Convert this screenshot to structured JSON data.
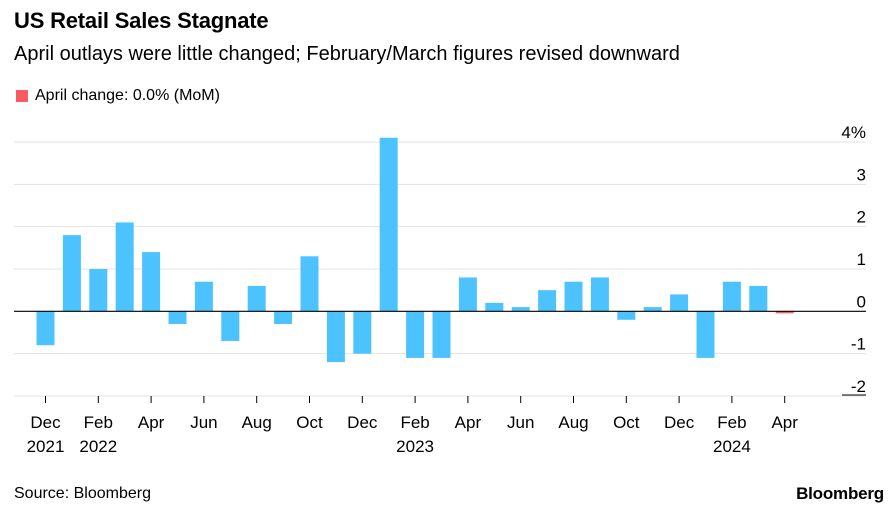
{
  "header": {
    "title": "US Retail Sales Stagnate",
    "subtitle": "April outlays were little changed; February/March figures revised downward"
  },
  "legend": {
    "label": "April change: 0.0% (MoM)",
    "color": "#ff5a5f"
  },
  "footer": {
    "source": "Source: Bloomberg",
    "brand": "Bloomberg"
  },
  "colors": {
    "bar": "#4cc3ff",
    "highlight": "#ff5a5f",
    "grid": "#e3e3e3",
    "zero": "#000000"
  },
  "chart_data": {
    "type": "bar",
    "title": "US Retail Sales Stagnate",
    "unit": "%",
    "categories": [
      "Dec 2021",
      "Jan 2022",
      "Feb 2022",
      "Mar 2022",
      "Apr 2022",
      "May 2022",
      "Jun 2022",
      "Jul 2022",
      "Aug 2022",
      "Sep 2022",
      "Oct 2022",
      "Nov 2022",
      "Dec 2022",
      "Jan 2023",
      "Feb 2023",
      "Mar 2023",
      "Apr 2023",
      "May 2023",
      "Jun 2023",
      "Jul 2023",
      "Aug 2023",
      "Sep 2023",
      "Oct 2023",
      "Nov 2023",
      "Dec 2023",
      "Jan 2024",
      "Feb 2024",
      "Mar 2024",
      "Apr 2024"
    ],
    "values": [
      -0.8,
      1.8,
      1.0,
      2.1,
      1.4,
      -0.3,
      0.7,
      -0.7,
      0.6,
      -0.3,
      1.3,
      -1.2,
      -1.0,
      4.1,
      -1.1,
      -1.1,
      0.8,
      0.2,
      0.1,
      0.5,
      0.7,
      0.8,
      -0.2,
      0.1,
      0.4,
      -1.1,
      0.7,
      0.6,
      0.0
    ],
    "highlight_index": 28,
    "ylim": [
      -2,
      4
    ],
    "y_ticks": [
      -2,
      -1,
      0,
      1,
      2,
      3,
      4
    ],
    "y_tick_labels": [
      "-2",
      "-1",
      "0",
      "1",
      "2",
      "3",
      "4%"
    ],
    "x_tick_labels": [
      {
        "index": 0,
        "month": "Dec",
        "year": "2021"
      },
      {
        "index": 2,
        "month": "Feb",
        "year": "2022"
      },
      {
        "index": 4,
        "month": "Apr",
        "year": ""
      },
      {
        "index": 6,
        "month": "Jun",
        "year": ""
      },
      {
        "index": 8,
        "month": "Aug",
        "year": ""
      },
      {
        "index": 10,
        "month": "Oct",
        "year": ""
      },
      {
        "index": 12,
        "month": "Dec",
        "year": ""
      },
      {
        "index": 14,
        "month": "Feb",
        "year": "2023"
      },
      {
        "index": 16,
        "month": "Apr",
        "year": ""
      },
      {
        "index": 18,
        "month": "Jun",
        "year": ""
      },
      {
        "index": 20,
        "month": "Aug",
        "year": ""
      },
      {
        "index": 22,
        "month": "Oct",
        "year": ""
      },
      {
        "index": 24,
        "month": "Dec",
        "year": ""
      },
      {
        "index": 26,
        "month": "Feb",
        "year": "2024"
      },
      {
        "index": 28,
        "month": "Apr",
        "year": ""
      }
    ],
    "grid": true,
    "legend_position": "top-left"
  }
}
